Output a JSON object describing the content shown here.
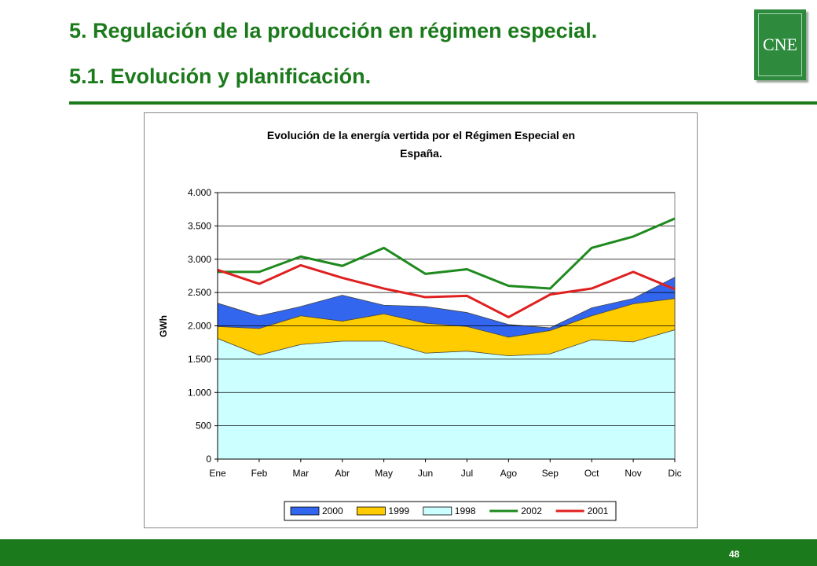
{
  "slide": {
    "title_line1": "5. Regulación de la producción en régimen especial.",
    "title_line2": "5.1. Evolución y planificación.",
    "logo_text": "CNE",
    "page_number": "48",
    "accent_color": "#1b7a1b"
  },
  "chart_data": {
    "type": "area",
    "title_line1": "Evolución de la energía vertida por el Régimen Especial en",
    "title_line2": "España.",
    "ylabel": "GWh",
    "xlabel": "",
    "categories": [
      "Ene",
      "Feb",
      "Mar",
      "Abr",
      "May",
      "Jun",
      "Jul",
      "Ago",
      "Sep",
      "Oct",
      "Nov",
      "Dic"
    ],
    "ylim": [
      0,
      4000
    ],
    "yticks": [
      0,
      500,
      1000,
      1500,
      2000,
      2500,
      3000,
      3500,
      4000
    ],
    "ytick_labels": [
      "0",
      "500",
      "1.000",
      "1.500",
      "2.000",
      "2.500",
      "3.000",
      "3.500",
      "4.000"
    ],
    "grid": true,
    "legend_position": "bottom",
    "area_series": [
      {
        "name": "2000",
        "color": "#3366ee",
        "values": [
          2340,
          2150,
          2290,
          2460,
          2310,
          2290,
          2200,
          2020,
          1970,
          2270,
          2410,
          2730
        ]
      },
      {
        "name": "1999",
        "color": "#ffcc00",
        "values": [
          1990,
          1960,
          2150,
          2070,
          2180,
          2040,
          1990,
          1830,
          1930,
          2150,
          2330,
          2410
        ]
      },
      {
        "name": "1998",
        "color": "#ccffff",
        "values": [
          1810,
          1560,
          1720,
          1770,
          1770,
          1590,
          1620,
          1550,
          1580,
          1790,
          1760,
          1940
        ]
      }
    ],
    "line_series": [
      {
        "name": "2002",
        "color": "#1e8a1e",
        "values": [
          2810,
          2810,
          3040,
          2900,
          3170,
          2780,
          2850,
          2600,
          2560,
          3170,
          3340,
          3610
        ]
      },
      {
        "name": "2001",
        "color": "#e02020",
        "values": [
          2840,
          2630,
          2910,
          2720,
          2560,
          2430,
          2450,
          2130,
          2470,
          2560,
          2810,
          2550
        ]
      }
    ],
    "legend": [
      "2000",
      "1999",
      "1998",
      "2002",
      "2001"
    ]
  }
}
